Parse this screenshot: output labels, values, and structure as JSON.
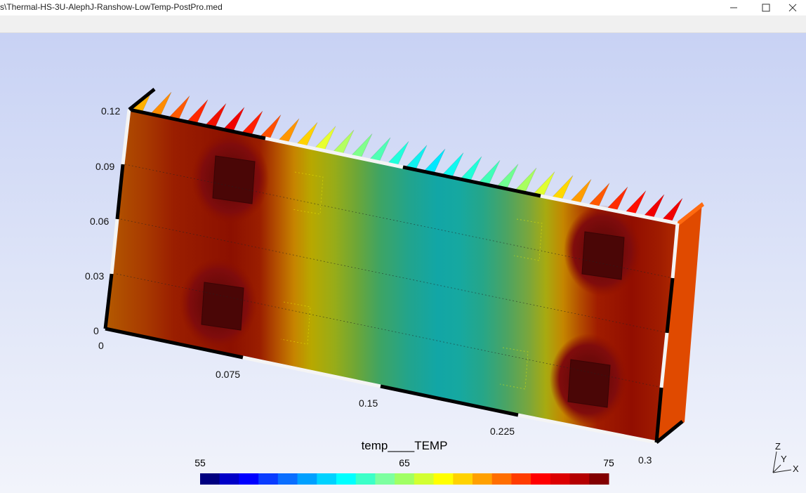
{
  "window": {
    "title": "s\\Thermal-HS-3U-AlephJ-Ranshow-LowTemp-PostPro.med",
    "minimize_icon": "minimize-icon",
    "maximize_icon": "maximize-icon",
    "close_icon": "close-icon"
  },
  "view": {
    "z_axis_ticks": [
      "0.12",
      "0.09",
      "0.06",
      "0.03",
      "0"
    ],
    "x_axis_ticks": [
      "0",
      "0.075",
      "0.15",
      "0.225",
      "0.3"
    ]
  },
  "scalar_bar": {
    "title": "temp____TEMP",
    "min_label": "55",
    "mid_label": "65",
    "max_label": "75",
    "range": [
      55,
      75
    ],
    "colors": [
      "#000080",
      "#0000c8",
      "#0000ff",
      "#0a3cff",
      "#0a6eff",
      "#00a0ff",
      "#00d2ff",
      "#00ffff",
      "#3cffc8",
      "#7dffa0",
      "#a0ff64",
      "#d2ff32",
      "#ffff00",
      "#ffd200",
      "#ffa000",
      "#ff6e00",
      "#ff3c00",
      "#ff0000",
      "#dc0000",
      "#b40000",
      "#820000"
    ]
  },
  "orientation_triad": {
    "z_label": "Z",
    "y_label": "Y",
    "x_label": "X"
  }
}
